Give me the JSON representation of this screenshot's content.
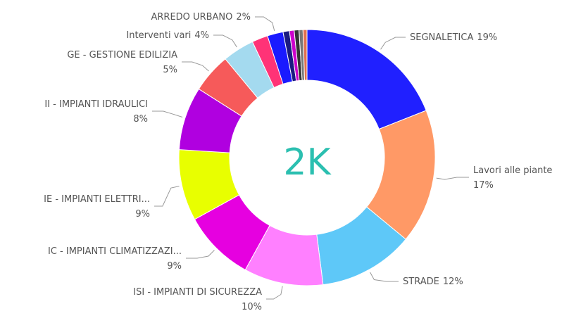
{
  "chart_data": {
    "type": "donut",
    "center_label": "2K",
    "categories": [
      "SEGNALETICA",
      "Lavori alle piante",
      "STRADE",
      "ISI - IMPIANTI DI SICUREZZA",
      "IC - IMPIANTI CLIMATIZZAZI...",
      "IE - IMPIANTI ELETTRI...",
      "II - IMPIANTI IDRAULICI",
      "GE - GESTIONE EDILIZIA",
      "Interventi vari",
      null,
      "ARREDO URBANO",
      null,
      null,
      null,
      null,
      null
    ],
    "values": [
      19,
      17,
      12,
      10,
      9,
      9,
      8,
      5,
      4,
      2,
      2,
      0.8,
      0.6,
      0.6,
      0.5,
      0.5
    ],
    "value_labels": [
      "19%",
      "17%",
      "12%",
      "10%",
      "9%",
      "9%",
      "8%",
      "5%",
      "4%",
      null,
      "2%",
      null,
      null,
      null,
      null,
      null
    ],
    "colors": [
      "#2020ff",
      "#ff9966",
      "#5ec8f8",
      "#ff80ff",
      "#e600e0",
      "#e8ff00",
      "#b000e0",
      "#f65a5a",
      "#a4daef",
      "#ff3377",
      "#1a1aff",
      "#1a1a80",
      "#cc00cc",
      "#333333",
      "#777777",
      "#e07050"
    ]
  }
}
